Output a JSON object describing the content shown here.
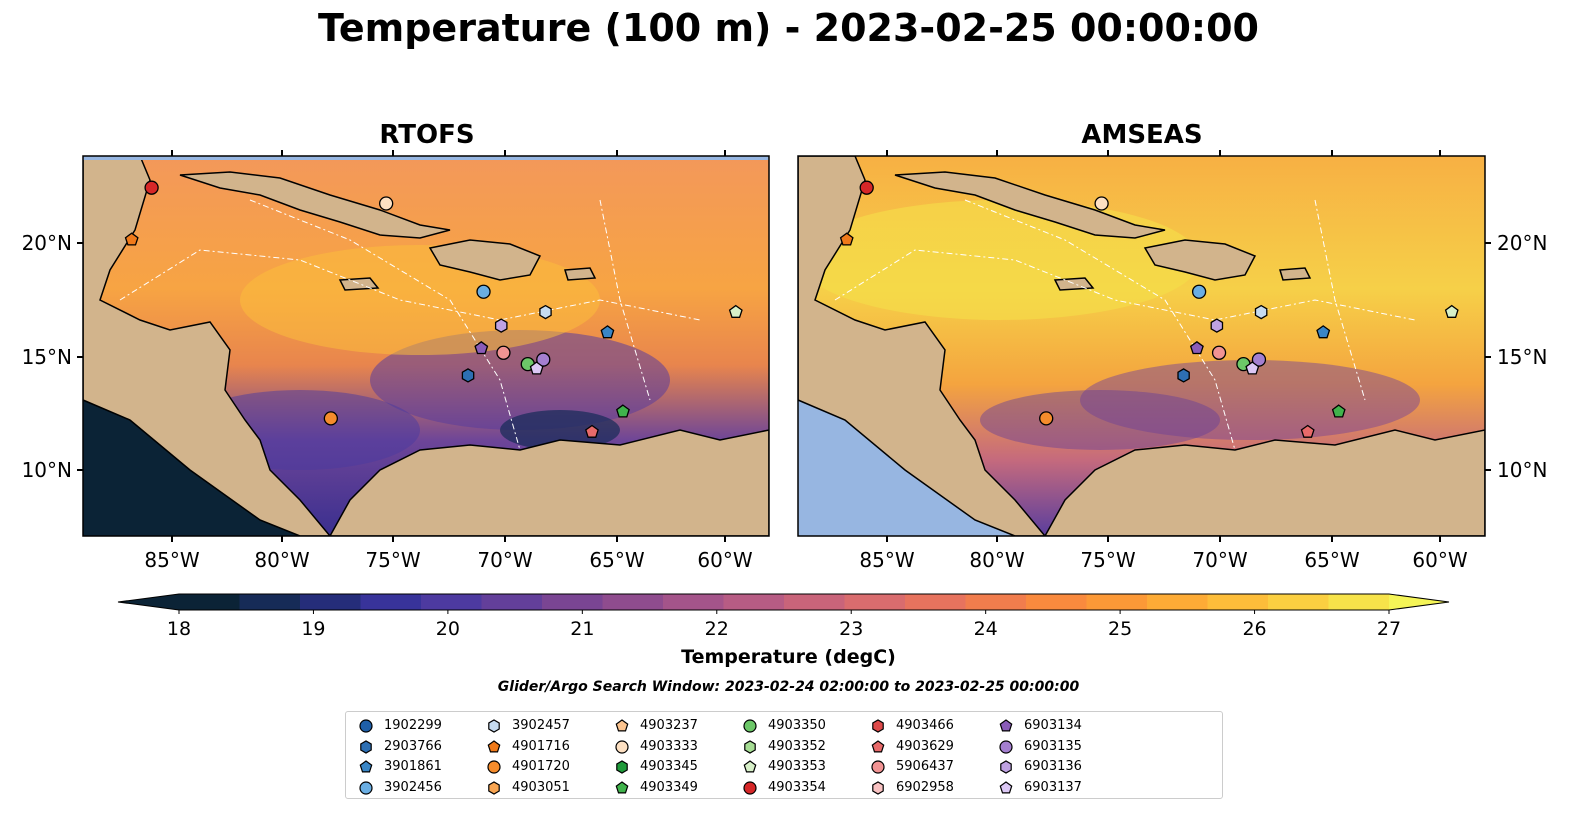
{
  "figure": {
    "title": "Temperature (100 m) - 2023-02-25 00:00:00",
    "panels": [
      {
        "title": "RTOFS"
      },
      {
        "title": "AMSEAS"
      }
    ],
    "lat_labels": [
      "20°N",
      "15°N",
      "10°N"
    ],
    "lon_labels": [
      "85°W",
      "80°W",
      "75°W",
      "70°W",
      "65°W",
      "60°W"
    ],
    "colorbar": {
      "label": "Temperature (degC)",
      "ticks": [
        "18",
        "19",
        "20",
        "21",
        "22",
        "23",
        "24",
        "25",
        "26",
        "27"
      ],
      "colors": [
        "#0b2336",
        "#162b57",
        "#252d7a",
        "#38339a",
        "#4d3aa0",
        "#633f9a",
        "#7a4593",
        "#8f4c8e",
        "#a4548a",
        "#b75c84",
        "#c9647a",
        "#d96c6e",
        "#e7735e",
        "#f17d4d",
        "#f98a3e",
        "#fc9937",
        "#fdab36",
        "#fdbd3a",
        "#fbcf41",
        "#f7e34a"
      ],
      "under_color": "#0b2336",
      "over_color": "#f5f557"
    },
    "search_window": "Glider/Argo Search Window: 2023-02-24 02:00:00 to 2023-02-25 00:00:00",
    "colors": {
      "land": "#d2b48c",
      "ocean": "#97b6e1"
    }
  },
  "legend": [
    {
      "id": "1902299",
      "marker": "circle",
      "color": "#1f5fa8"
    },
    {
      "id": "2903766",
      "marker": "hexagon",
      "color": "#2d6fb3"
    },
    {
      "id": "3901861",
      "marker": "pentagon",
      "color": "#3a86c6"
    },
    {
      "id": "3902456",
      "marker": "circle",
      "color": "#6aaee3"
    },
    {
      "id": "3902457",
      "marker": "hexagon",
      "color": "#c6dbef"
    },
    {
      "id": "4901716",
      "marker": "pentagon",
      "color": "#f07a1a"
    },
    {
      "id": "4901720",
      "marker": "circle",
      "color": "#f58c2c"
    },
    {
      "id": "4903051",
      "marker": "hexagon",
      "color": "#f8a552"
    },
    {
      "id": "4903237",
      "marker": "pentagon",
      "color": "#fcc48f"
    },
    {
      "id": "4903333",
      "marker": "circle",
      "color": "#fde0c2"
    },
    {
      "id": "4903345",
      "marker": "hexagon",
      "color": "#1f9a3a"
    },
    {
      "id": "4903349",
      "marker": "pentagon",
      "color": "#40b34c"
    },
    {
      "id": "4903350",
      "marker": "circle",
      "color": "#6cc768"
    },
    {
      "id": "4903352",
      "marker": "hexagon",
      "color": "#a6dd94"
    },
    {
      "id": "4903353",
      "marker": "pentagon",
      "color": "#d7f0c8"
    },
    {
      "id": "4903354",
      "marker": "circle",
      "color": "#d62728"
    },
    {
      "id": "4903466",
      "marker": "hexagon",
      "color": "#de4a4a"
    },
    {
      "id": "4903629",
      "marker": "pentagon",
      "color": "#e86a6a"
    },
    {
      "id": "5906437",
      "marker": "circle",
      "color": "#f19393"
    },
    {
      "id": "6902958",
      "marker": "hexagon",
      "color": "#f9c2c2"
    },
    {
      "id": "6903134",
      "marker": "pentagon",
      "color": "#8a5cb8"
    },
    {
      "id": "6903135",
      "marker": "circle",
      "color": "#a47fd0"
    },
    {
      "id": "6903136",
      "marker": "hexagon",
      "color": "#bfa2e2"
    },
    {
      "id": "6903137",
      "marker": "pentagon",
      "color": "#dcc8f5"
    }
  ],
  "markers": [
    {
      "id": "4903354",
      "lon": -85.9,
      "lat": 22.4
    },
    {
      "id": "4901716",
      "lon": -86.8,
      "lat": 20.1
    },
    {
      "id": "4903333",
      "lon": -75.3,
      "lat": 21.7
    },
    {
      "id": "3902456",
      "lon": -70.9,
      "lat": 17.8
    },
    {
      "id": "3902457",
      "lon": -68.1,
      "lat": 16.9
    },
    {
      "id": "6903136",
      "lon": -70.1,
      "lat": 16.3
    },
    {
      "id": "3901861",
      "lon": -65.3,
      "lat": 16.0
    },
    {
      "id": "4903353",
      "lon": -59.5,
      "lat": 16.9
    },
    {
      "id": "6903134",
      "lon": -71.0,
      "lat": 15.3
    },
    {
      "id": "5906437",
      "lon": -70.0,
      "lat": 15.1
    },
    {
      "id": "6903135",
      "lon": -68.2,
      "lat": 14.8
    },
    {
      "id": "4903350",
      "lon": -68.9,
      "lat": 14.6
    },
    {
      "id": "6903137",
      "lon": -68.5,
      "lat": 14.4
    },
    {
      "id": "2903766",
      "lon": -71.6,
      "lat": 14.1
    },
    {
      "id": "4901720",
      "lon": -77.8,
      "lat": 12.2
    },
    {
      "id": "4903349",
      "lon": -64.6,
      "lat": 12.5
    },
    {
      "id": "4903629",
      "lon": -66.0,
      "lat": 11.6
    }
  ]
}
